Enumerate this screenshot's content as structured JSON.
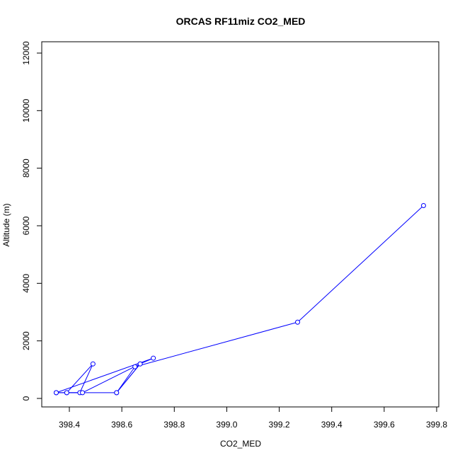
{
  "chart_data": {
    "type": "line",
    "title": "ORCAS RF11miz CO2_MED",
    "xlabel": "CO2_MED",
    "ylabel": "Altitude (m)",
    "xlim": [
      398.3,
      399.8
    ],
    "ylim": [
      0,
      12000
    ],
    "x_ticks": [
      "398.4",
      "398.6",
      "398.8",
      "399.0",
      "399.2",
      "399.4",
      "399.6",
      "399.8"
    ],
    "y_ticks": [
      "0",
      "2000",
      "4000",
      "6000",
      "8000",
      "10000",
      "12000"
    ],
    "grid": false,
    "legend": "none",
    "series": [
      {
        "color": "#0000ff",
        "marker": "open-circle",
        "points": [
          {
            "x": 398.35,
            "y": 200
          },
          {
            "x": 398.39,
            "y": 200
          },
          {
            "x": 398.44,
            "y": 200
          },
          {
            "x": 398.49,
            "y": 1200
          },
          {
            "x": 398.39,
            "y": 200
          },
          {
            "x": 398.58,
            "y": 200
          },
          {
            "x": 398.67,
            "y": 1200
          },
          {
            "x": 398.72,
            "y": 1400
          },
          {
            "x": 398.35,
            "y": 200
          },
          {
            "x": 398.45,
            "y": 200
          },
          {
            "x": 398.67,
            "y": 1200
          },
          {
            "x": 398.58,
            "y": 200
          },
          {
            "x": 398.65,
            "y": 1100
          },
          {
            "x": 399.27,
            "y": 2650
          },
          {
            "x": 399.75,
            "y": 6700
          }
        ]
      }
    ]
  }
}
